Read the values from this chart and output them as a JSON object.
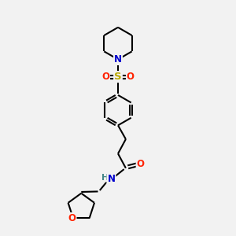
{
  "background_color": "#f2f2f2",
  "atom_colors": {
    "C": "#000000",
    "N": "#0000cc",
    "O": "#ff2200",
    "S": "#bbaa00",
    "H": "#448888"
  },
  "bond_color": "#000000",
  "bond_width": 1.5,
  "figsize": [
    3.0,
    3.0
  ],
  "dpi": 100,
  "xlim": [
    2.5,
    8.5
  ],
  "ylim": [
    2.0,
    12.5
  ]
}
